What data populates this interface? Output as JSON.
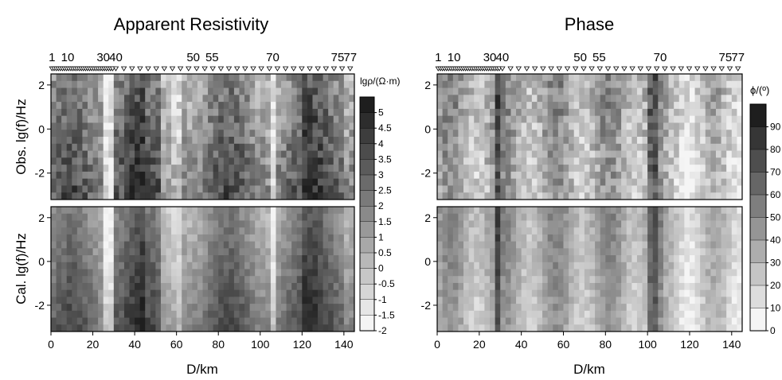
{
  "panels": [
    {
      "title": "Apparent Resistivity",
      "colorbar_label": "lgρ/(Ω·m)",
      "colorbar_ticks": [
        "5",
        "4.5",
        "4",
        "3.5",
        "3",
        "2.5",
        "2",
        "1.5",
        "1",
        "0.5",
        "0",
        "-0.5",
        "-1",
        "-1.5",
        "-2"
      ],
      "top_ylabel": "Obs. lg(f)/Hz",
      "bottom_ylabel": "Cal. lg(f)/Hz",
      "xlabel": "D/km"
    },
    {
      "title": "Phase",
      "colorbar_label": "ϕ/(º)",
      "colorbar_ticks": [
        "90",
        "80",
        "70",
        "60",
        "50",
        "40",
        "30",
        "20",
        "10",
        "0"
      ],
      "xlabel": "D/km"
    }
  ],
  "station_labels": [
    "1",
    "10",
    "30",
    "40",
    "50",
    "55",
    "70",
    "75",
    "77"
  ],
  "colors": {
    "dark": "#2a2a2a",
    "light": "#f2f2f2",
    "frame": "#000000"
  },
  "chart_data": [
    {
      "type": "heatmap",
      "title": "Apparent Resistivity",
      "subplots": [
        "Obs. lg(f)/Hz",
        "Cal. lg(f)/Hz"
      ],
      "xlabel": "D/km",
      "xlim": [
        0,
        145
      ],
      "ylim": [
        -3.2,
        2.5
      ],
      "x_ticks": [
        0,
        20,
        40,
        60,
        80,
        100,
        120,
        140
      ],
      "y_ticks": [
        2,
        0,
        -2
      ],
      "colorbar": {
        "label": "lgρ/(Ω·m)",
        "min": -2,
        "max": 5.5,
        "step": 0.5
      },
      "stations": {
        "labels": [
          "1",
          "10",
          "30",
          "40",
          "50",
          "55",
          "70",
          "75",
          "77"
        ],
        "km": [
          0.5,
          8,
          25,
          31,
          68,
          77,
          106,
          137,
          143
        ]
      }
    },
    {
      "type": "heatmap",
      "title": "Phase",
      "subplots": [
        "Obs.",
        "Cal."
      ],
      "xlabel": "D/km",
      "xlim": [
        0,
        145
      ],
      "ylim": [
        -3.2,
        2.5
      ],
      "x_ticks": [
        0,
        20,
        40,
        60,
        80,
        100,
        120,
        140
      ],
      "y_ticks": [
        2,
        0,
        -2
      ],
      "colorbar": {
        "label": "ϕ/(º)",
        "min": 0,
        "max": 100,
        "step": 10
      },
      "stations": {
        "labels": [
          "1",
          "10",
          "30",
          "40",
          "50",
          "55",
          "70",
          "75",
          "77"
        ],
        "km": [
          0.5,
          8,
          25,
          31,
          68,
          77,
          106,
          137,
          143
        ]
      }
    }
  ]
}
